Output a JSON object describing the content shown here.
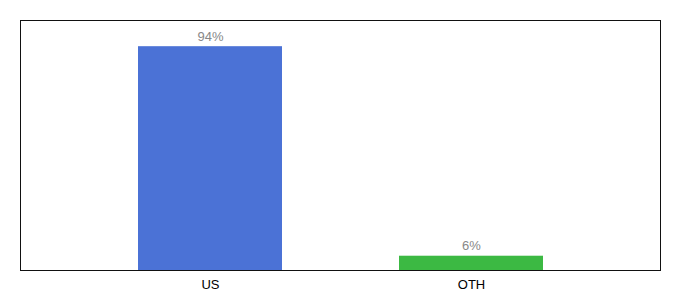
{
  "chart_data": {
    "type": "bar",
    "categories": [
      "US",
      "OTH"
    ],
    "values": [
      94,
      6
    ],
    "value_labels": [
      "94%",
      "6%"
    ],
    "colors": [
      "#4b72d6",
      "#3cb943"
    ],
    "ylim": [
      0,
      105
    ],
    "data_labels": true,
    "tick_labels": "x"
  }
}
